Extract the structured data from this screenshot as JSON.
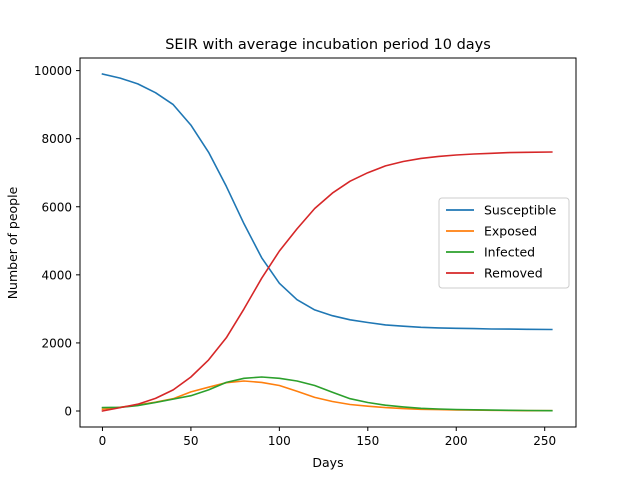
{
  "chart_data": {
    "type": "line",
    "title": "SEIR with average incubation period 10 days",
    "xlabel": "Days",
    "ylabel": "Number of people",
    "xlim": [
      -12.7,
      267.7
    ],
    "ylim": [
      -470,
      10370
    ],
    "xticks": [
      0,
      50,
      100,
      150,
      200,
      250
    ],
    "yticks": [
      0,
      2000,
      4000,
      6000,
      8000,
      10000
    ],
    "grid": false,
    "legend_position": "center-right",
    "x": [
      0,
      10,
      20,
      30,
      40,
      50,
      60,
      70,
      80,
      90,
      100,
      110,
      120,
      130,
      140,
      150,
      160,
      170,
      180,
      190,
      200,
      210,
      220,
      230,
      240,
      254
    ],
    "series": [
      {
        "name": "Susceptible",
        "color": "#1f77b4",
        "values": [
          9900,
          9780,
          9610,
          9350,
          9000,
          8400,
          7600,
          6600,
          5500,
          4500,
          3750,
          3270,
          2970,
          2800,
          2680,
          2600,
          2530,
          2490,
          2460,
          2440,
          2430,
          2420,
          2410,
          2405,
          2400,
          2395
        ]
      },
      {
        "name": "Exposed",
        "color": "#ff7f0e",
        "values": [
          50,
          110,
          180,
          260,
          360,
          560,
          700,
          830,
          880,
          840,
          750,
          580,
          400,
          280,
          190,
          140,
          100,
          70,
          50,
          40,
          30,
          25,
          20,
          15,
          10,
          10
        ]
      },
      {
        "name": "Infected",
        "color": "#2ca02c",
        "values": [
          100,
          110,
          160,
          250,
          350,
          450,
          620,
          840,
          960,
          1000,
          960,
          880,
          750,
          550,
          360,
          250,
          170,
          120,
          80,
          60,
          45,
          35,
          25,
          20,
          15,
          10
        ]
      },
      {
        "name": "Removed",
        "color": "#d62728",
        "values": [
          0,
          100,
          200,
          370,
          620,
          1000,
          1500,
          2150,
          3000,
          3900,
          4700,
          5350,
          5950,
          6400,
          6750,
          7000,
          7200,
          7330,
          7420,
          7480,
          7520,
          7550,
          7570,
          7590,
          7600,
          7610
        ]
      }
    ]
  }
}
